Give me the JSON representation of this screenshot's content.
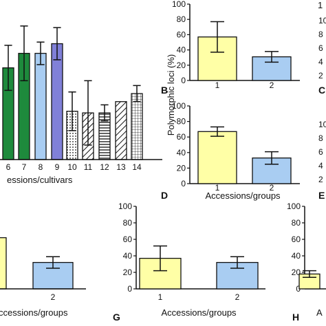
{
  "figure": {
    "shared_ylabel": "Polymorphic loci (%)",
    "shared_xlabel_groups": "Accessions/groups",
    "shared_xlabel_cultivars_fragment": "essions/cultivars",
    "shared_xlabel_groups_fragment": "ccessions/groups",
    "ytick_labels": [
      "0",
      "20",
      "40",
      "60",
      "80",
      "100"
    ],
    "edge_tick_fragments_top": [
      "10",
      "8",
      "6",
      "4",
      "2"
    ],
    "edge_tick_fragments_mid": [
      "10",
      "8",
      "6",
      "4",
      "2"
    ],
    "edge_top_char": "1",
    "panel_letter_C": "C",
    "panel_letter_E": "E",
    "panel_letter_H_fragment": "A"
  },
  "chart_data": [
    {
      "panel": "A",
      "type": "bar",
      "categories": [
        "6",
        "7",
        "8",
        "9",
        "10",
        "11",
        "12",
        "13",
        "14"
      ],
      "values": [
        57,
        66,
        66,
        72,
        30,
        29,
        29,
        36,
        41
      ],
      "errors": [
        14,
        17,
        7,
        10,
        12,
        20,
        5,
        0,
        5
      ],
      "colors": [
        "#1e8a3c",
        "#1e8a3c",
        "#a9cdf2",
        "#8080d8",
        "#ffffff",
        "#ffffff",
        "#ffffff",
        "#ffffff",
        "#ffffff"
      ],
      "patterns": [
        "solid",
        "solid",
        "solid",
        "solid",
        "dots",
        "diag",
        "hstripe",
        "diag",
        "grid"
      ],
      "ylim": [
        0,
        100
      ],
      "xlabel": "essions/cultivars"
    },
    {
      "panel": "B",
      "type": "bar",
      "categories": [
        "1",
        "2"
      ],
      "values": [
        57,
        31
      ],
      "errors": [
        20,
        7
      ],
      "colors": [
        "#ffffa6",
        "#a9cdf2"
      ],
      "ylim": [
        0,
        100
      ],
      "yticks": [
        0,
        20,
        40,
        60,
        80,
        100
      ],
      "ylabel": "Polymorphic loci (%)",
      "letter": "B"
    },
    {
      "panel": "D",
      "type": "bar",
      "categories": [
        "1",
        "2"
      ],
      "values": [
        67,
        33
      ],
      "errors": [
        6,
        8
      ],
      "colors": [
        "#ffffa6",
        "#a9cdf2"
      ],
      "ylim": [
        0,
        100
      ],
      "yticks": [
        0,
        20,
        40,
        60,
        80,
        100
      ],
      "xlabel": "Accessions/groups",
      "letter": "D"
    },
    {
      "panel": "F",
      "type": "bar",
      "categories": [
        "",
        "2"
      ],
      "values": [
        62,
        32
      ],
      "errors": [
        0,
        7
      ],
      "colors": [
        "#ffffa6",
        "#a9cdf2"
      ],
      "ylim": [
        0,
        100
      ],
      "xlabel": "ccessions/groups"
    },
    {
      "panel": "G",
      "type": "bar",
      "categories": [
        "1",
        "2"
      ],
      "values": [
        37,
        32
      ],
      "errors": [
        15,
        7
      ],
      "colors": [
        "#ffffa6",
        "#a9cdf2"
      ],
      "ylim": [
        0,
        100
      ],
      "yticks": [
        0,
        20,
        40,
        60,
        80,
        100
      ],
      "xlabel": "Accessions/groups",
      "letter": "G"
    },
    {
      "panel": "H",
      "type": "bar",
      "categories": [
        ""
      ],
      "values": [
        18
      ],
      "errors": [
        4
      ],
      "colors": [
        "#ffffa6"
      ],
      "ylim": [
        0,
        100
      ],
      "yticks": [
        0,
        20,
        40,
        60,
        80,
        100
      ],
      "letter": "H"
    }
  ]
}
